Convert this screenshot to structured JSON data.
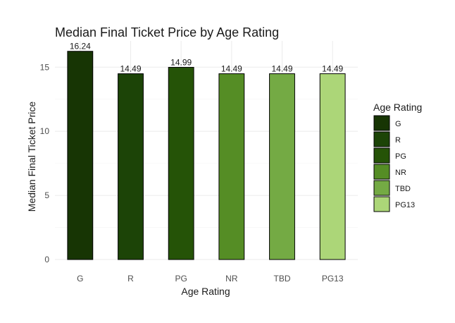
{
  "chart_data": {
    "type": "bar",
    "title": "Median Final Ticket Price by Age Rating",
    "xlabel": "Age Rating",
    "ylabel": "Median Final Ticket Price",
    "categories": [
      "G",
      "R",
      "PG",
      "NR",
      "TBD",
      "PG13"
    ],
    "values": [
      16.24,
      14.49,
      14.99,
      14.49,
      14.49,
      14.49
    ],
    "value_labels": [
      "16.24",
      "14.49",
      "14.99",
      "14.49",
      "14.49",
      "14.49"
    ],
    "ylim": [
      0,
      17.05
    ],
    "yticks": [
      0,
      5,
      10,
      15
    ],
    "ytick_labels": [
      "0",
      "5",
      "10",
      "15"
    ],
    "colors": [
      "#173504",
      "#1c4407",
      "#255307",
      "#558d25",
      "#74aa44",
      "#acd678"
    ],
    "grid": true,
    "legend": {
      "title": "Age Rating",
      "position": "right",
      "entries": [
        "G",
        "R",
        "PG",
        "NR",
        "TBD",
        "PG13"
      ]
    }
  }
}
